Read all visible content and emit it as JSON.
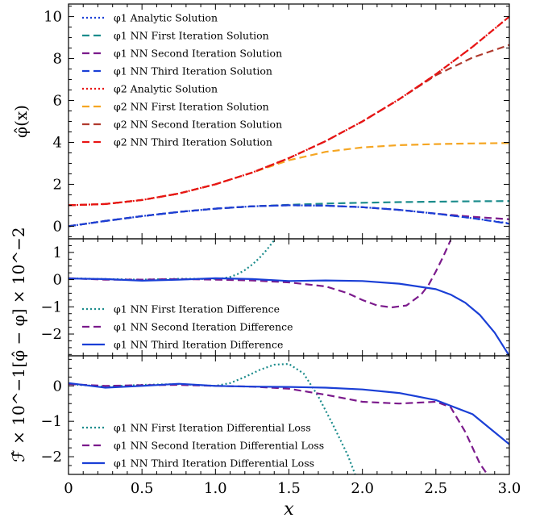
{
  "chart_data": [
    {
      "type": "line",
      "ylabel": "φ̂(x)",
      "xlim": [
        0,
        3
      ],
      "ylim": [
        -0.6,
        10.6
      ],
      "yticks": [
        "0",
        "2",
        "4",
        "6",
        "8",
        "10"
      ],
      "grid": false,
      "legend": "top-left",
      "series": [
        {
          "name": "φ1 Analytic Solution",
          "style": "dotted",
          "color": "#1a3fd6",
          "x": [
            0,
            0.25,
            0.5,
            0.75,
            1.0,
            1.25,
            1.5,
            1.75,
            2.0,
            2.25,
            2.5,
            2.75,
            3.0
          ],
          "y": [
            0,
            0.25,
            0.48,
            0.68,
            0.84,
            0.95,
            1.0,
            0.98,
            0.91,
            0.78,
            0.6,
            0.38,
            0.14
          ]
        },
        {
          "name": "φ1 NN First Iteration Solution",
          "style": "dashed",
          "color": "#1b8c8c",
          "x": [
            0,
            0.25,
            0.5,
            0.75,
            1.0,
            1.25,
            1.5,
            1.75,
            2.0,
            2.25,
            2.5,
            2.75,
            3.0
          ],
          "y": [
            0,
            0.25,
            0.48,
            0.68,
            0.84,
            0.95,
            1.02,
            1.08,
            1.12,
            1.15,
            1.17,
            1.19,
            1.2
          ]
        },
        {
          "name": "φ1 NN Second Iteration Solution",
          "style": "dashed",
          "color": "#7b1a8c",
          "x": [
            0,
            0.25,
            0.5,
            0.75,
            1.0,
            1.25,
            1.5,
            1.75,
            2.0,
            2.25,
            2.5,
            2.75,
            3.0
          ],
          "y": [
            0,
            0.25,
            0.48,
            0.68,
            0.84,
            0.95,
            1.0,
            0.98,
            0.91,
            0.78,
            0.6,
            0.45,
            0.33
          ]
        },
        {
          "name": "φ1 NN Third Iteration Solution",
          "style": "dashed",
          "color": "#1a3fd6",
          "x": [
            0,
            0.25,
            0.5,
            0.75,
            1.0,
            1.25,
            1.5,
            1.75,
            2.0,
            2.25,
            2.5,
            2.75,
            3.0
          ],
          "y": [
            0,
            0.25,
            0.48,
            0.68,
            0.84,
            0.95,
            1.0,
            0.98,
            0.91,
            0.78,
            0.6,
            0.38,
            0.12
          ]
        },
        {
          "name": "φ2 Analytic Solution",
          "style": "dotted",
          "color": "#e81414",
          "x": [
            0,
            0.25,
            0.5,
            0.75,
            1.0,
            1.25,
            1.5,
            1.75,
            2.0,
            2.25,
            2.5,
            2.75,
            3.0
          ],
          "y": [
            1.0,
            1.06,
            1.25,
            1.56,
            2.0,
            2.56,
            3.25,
            4.06,
            5.0,
            6.06,
            7.25,
            8.56,
            10.0
          ]
        },
        {
          "name": "φ2 NN First Iteration Solution",
          "style": "dashed",
          "color": "#f5a623",
          "x": [
            0,
            0.25,
            0.5,
            0.75,
            1.0,
            1.25,
            1.5,
            1.75,
            2.0,
            2.25,
            2.5,
            2.75,
            3.0
          ],
          "y": [
            1.0,
            1.06,
            1.25,
            1.56,
            2.0,
            2.56,
            3.15,
            3.55,
            3.76,
            3.87,
            3.92,
            3.95,
            3.97
          ]
        },
        {
          "name": "φ2 NN Second Iteration Solution",
          "style": "dashed",
          "color": "#b03a2e",
          "x": [
            0,
            0.25,
            0.5,
            0.75,
            1.0,
            1.25,
            1.5,
            1.75,
            2.0,
            2.25,
            2.5,
            2.75,
            3.0
          ],
          "y": [
            1.0,
            1.06,
            1.25,
            1.56,
            2.0,
            2.56,
            3.25,
            4.06,
            5.0,
            6.06,
            7.2,
            8.05,
            8.65
          ]
        },
        {
          "name": "φ2 NN Third Iteration Solution",
          "style": "dashed",
          "color": "#e81414",
          "x": [
            0,
            0.25,
            0.5,
            0.75,
            1.0,
            1.25,
            1.5,
            1.75,
            2.0,
            2.25,
            2.5,
            2.75,
            3.0
          ],
          "y": [
            1.0,
            1.06,
            1.25,
            1.56,
            2.0,
            2.56,
            3.25,
            4.06,
            5.0,
            6.06,
            7.25,
            8.56,
            10.0
          ]
        }
      ]
    },
    {
      "type": "line",
      "ylabel": "[φ̂ − φ] × 10^−2",
      "xlim": [
        0,
        3
      ],
      "ylim": [
        -2.8,
        1.5
      ],
      "yticks": [
        "−2",
        "−1",
        "0",
        "1"
      ],
      "grid": false,
      "legend": "bottom-left",
      "series": [
        {
          "name": "φ1 NN First Iteration Difference",
          "style": "dotted",
          "color": "#1b8c8c",
          "x": [
            0,
            0.25,
            0.5,
            0.75,
            1.0,
            1.05,
            1.1,
            1.15,
            1.2,
            1.25,
            1.3,
            1.35,
            1.4
          ],
          "y": [
            0.05,
            0.02,
            0.0,
            0.03,
            0.03,
            0.05,
            0.1,
            0.2,
            0.35,
            0.55,
            0.8,
            1.1,
            1.45
          ]
        },
        {
          "name": "φ1 NN Second Iteration Difference",
          "style": "dashed",
          "color": "#7b1a8c",
          "x": [
            0,
            0.25,
            0.5,
            0.75,
            1.0,
            1.25,
            1.5,
            1.75,
            1.9,
            2.0,
            2.1,
            2.2,
            2.3,
            2.4,
            2.45,
            2.5,
            2.55,
            2.6
          ],
          "y": [
            0.05,
            0.0,
            0.0,
            0.02,
            0.0,
            -0.03,
            -0.1,
            -0.25,
            -0.5,
            -0.75,
            -0.95,
            -1.02,
            -0.95,
            -0.55,
            -0.2,
            0.3,
            0.85,
            1.45
          ]
        },
        {
          "name": "φ1 NN Third Iteration Difference",
          "style": "solid",
          "color": "#1a3fd6",
          "x": [
            0,
            0.25,
            0.5,
            0.75,
            1.0,
            1.25,
            1.5,
            1.75,
            2.0,
            2.25,
            2.5,
            2.6,
            2.7,
            2.8,
            2.9,
            3.0
          ],
          "y": [
            0.04,
            0.02,
            -0.04,
            0.0,
            0.05,
            0.02,
            -0.05,
            -0.03,
            -0.05,
            -0.15,
            -0.35,
            -0.55,
            -0.85,
            -1.3,
            -1.95,
            -2.8
          ]
        }
      ]
    },
    {
      "type": "line",
      "ylabel": "ℱ̂ × 10^−1",
      "xlabel": "x",
      "xlim": [
        0,
        3
      ],
      "ylim": [
        -2.5,
        0.85
      ],
      "xticks": [
        "0",
        "0.5",
        "1.0",
        "1.5",
        "2.0",
        "2.5",
        "3.0"
      ],
      "yticks": [
        "−2",
        "−1",
        "0"
      ],
      "grid": false,
      "legend": "bottom-left",
      "series": [
        {
          "name": "φ1 NN First Iteration Differential Loss",
          "style": "dotted",
          "color": "#1b8c8c",
          "x": [
            0,
            0.25,
            0.5,
            0.75,
            1.0,
            1.1,
            1.2,
            1.3,
            1.4,
            1.5,
            1.6,
            1.7,
            1.8,
            1.9,
            1.95
          ],
          "y": [
            0.05,
            -0.02,
            0.03,
            0.05,
            0.0,
            0.08,
            0.25,
            0.45,
            0.6,
            0.62,
            0.35,
            -0.3,
            -1.1,
            -1.95,
            -2.5
          ]
        },
        {
          "name": "φ1 NN Second Iteration Differential Loss",
          "style": "dashed",
          "color": "#7b1a8c",
          "x": [
            0,
            0.25,
            0.5,
            0.75,
            1.0,
            1.25,
            1.5,
            1.75,
            2.0,
            2.25,
            2.5,
            2.6,
            2.7,
            2.8,
            2.85
          ],
          "y": [
            0.05,
            0.0,
            0.02,
            0.03,
            0.0,
            -0.02,
            -0.08,
            -0.25,
            -0.45,
            -0.5,
            -0.45,
            -0.6,
            -1.3,
            -2.2,
            -2.5
          ]
        },
        {
          "name": "φ1 NN Third Iteration Differential Loss",
          "style": "solid",
          "color": "#1a3fd6",
          "x": [
            0,
            0.25,
            0.5,
            0.75,
            1.0,
            1.25,
            1.5,
            1.75,
            2.0,
            2.25,
            2.5,
            2.75,
            3.0
          ],
          "y": [
            0.08,
            -0.05,
            0.0,
            0.06,
            0.0,
            -0.02,
            -0.03,
            -0.05,
            -0.1,
            -0.2,
            -0.4,
            -0.8,
            -1.65
          ]
        }
      ]
    }
  ]
}
